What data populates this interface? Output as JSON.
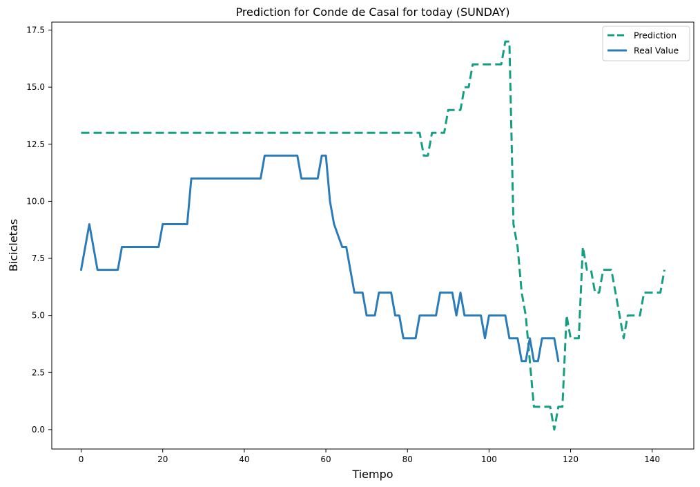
{
  "chart_data": {
    "type": "line",
    "title": "Prediction for Conde de Casal for today (SUNDAY)",
    "xlabel": "Tiempo",
    "ylabel": "Bicicletas",
    "xlim": [
      -7.2,
      150.2
    ],
    "ylim": [
      -0.85,
      17.85
    ],
    "xticks": [
      0,
      20,
      40,
      60,
      80,
      100,
      120,
      140
    ],
    "xtick_labels": [
      "0",
      "20",
      "40",
      "60",
      "80",
      "100",
      "120",
      "140"
    ],
    "yticks": [
      0,
      2.5,
      5,
      7.5,
      10,
      12.5,
      15,
      17.5
    ],
    "ytick_labels": [
      "0.0",
      "2.5",
      "5.0",
      "7.5",
      "10.0",
      "12.5",
      "15.0",
      "17.5"
    ],
    "grid": false,
    "legend_position": "top-right",
    "series": [
      {
        "name": "Prediction",
        "color": "#159e82",
        "style": "dashed",
        "x": [
          0,
          83,
          84,
          85,
          86,
          89,
          90,
          93,
          94,
          95,
          96,
          97,
          98,
          102,
          103,
          104,
          105,
          106,
          107,
          108,
          109,
          110,
          111,
          112,
          115,
          116,
          117,
          118,
          119,
          120,
          121,
          122,
          123,
          124,
          125,
          126,
          127,
          128,
          129,
          130,
          131,
          132,
          133,
          134,
          135,
          137,
          138,
          140,
          141,
          142,
          143
        ],
        "y": [
          13,
          13,
          12,
          12,
          13,
          13,
          14,
          14,
          15,
          15,
          16,
          16,
          16,
          16,
          16,
          17,
          17,
          9,
          8,
          6,
          5,
          3,
          1,
          1,
          1,
          0,
          1,
          1,
          5,
          4,
          4,
          4,
          8,
          7,
          7,
          6,
          6,
          7,
          7,
          7,
          6,
          5,
          4,
          5,
          5,
          5,
          6,
          6,
          6,
          6,
          7
        ]
      },
      {
        "name": "Real Value",
        "color": "#2b7bb9",
        "style": "solid",
        "x": [
          0,
          2,
          4,
          5,
          9,
          10,
          19,
          20,
          26,
          27,
          44,
          45,
          53,
          54,
          58,
          59,
          60,
          61,
          62,
          64,
          65,
          66,
          67,
          68,
          69,
          70,
          71,
          72,
          73,
          74,
          76,
          77,
          78,
          79,
          80,
          82,
          83,
          85,
          86,
          87,
          88,
          89,
          90,
          91,
          92,
          93,
          94,
          95,
          97,
          98,
          99,
          100,
          102,
          104,
          105,
          106,
          107,
          108,
          109,
          110,
          111,
          112,
          113,
          114,
          115,
          116,
          117
        ],
        "y": [
          7,
          9,
          7,
          7,
          7,
          8,
          8,
          9,
          9,
          11,
          11,
          12,
          12,
          11,
          11,
          12,
          12,
          10,
          9,
          8,
          8,
          7,
          6,
          6,
          6,
          5,
          5,
          5,
          6,
          6,
          6,
          5,
          5,
          4,
          4,
          4,
          5,
          5,
          5,
          5,
          6,
          6,
          6,
          6,
          5,
          6,
          5,
          5,
          5,
          5,
          4,
          5,
          5,
          5,
          4,
          4,
          4,
          3,
          3,
          4,
          3,
          3,
          4,
          4,
          4,
          4,
          3
        ]
      }
    ]
  }
}
